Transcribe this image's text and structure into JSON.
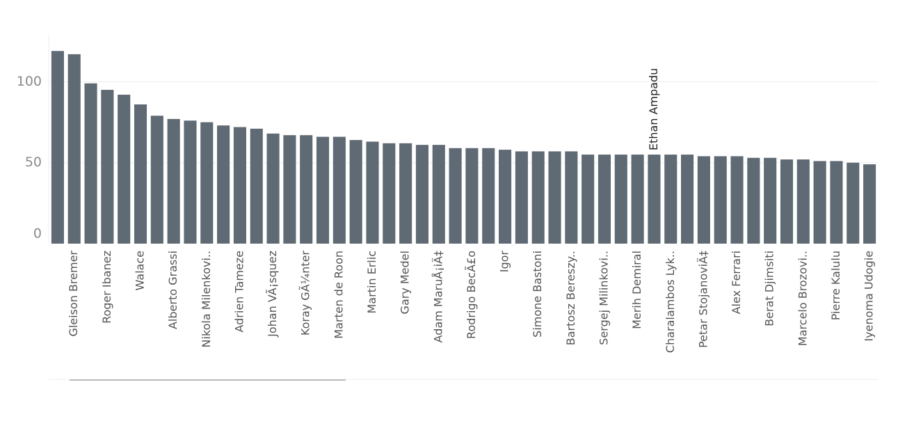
{
  "chart_data": {
    "type": "bar",
    "categories": [
      null,
      "Gleison Bremer",
      null,
      "Roger Ibanez",
      null,
      "Walace",
      null,
      "Alberto Grassi",
      null,
      "Nikola Milenkovi..",
      null,
      "Adrien Tameze",
      null,
      "Johan VÃ¡squez",
      null,
      "Koray GÃ¼nter",
      null,
      "Marten de Roon",
      null,
      "Martin Erlic",
      null,
      "Gary Medel",
      null,
      "Adam MaruÅ¡iÄ‡",
      null,
      "Rodrigo BecÃ£o",
      null,
      "Igor",
      null,
      "Simone Bastoni",
      null,
      "Bartosz Bereszy..",
      null,
      "Sergej Milinkovi..",
      null,
      "Merih Demiral",
      null,
      "Charalambos Lyk..",
      null,
      "Petar StojanoviÄ‡",
      null,
      "Alex Ferrari",
      null,
      "Berat Djimsiti",
      null,
      "Marcelo Brozovi..",
      null,
      "Pierre Kalulu",
      null,
      "Iyenoma Udogie"
    ],
    "values": [
      119,
      117,
      99,
      95,
      92,
      86,
      79,
      77,
      76,
      75,
      73,
      72,
      71,
      68,
      67,
      67,
      66,
      66,
      64,
      63,
      62,
      62,
      61,
      61,
      59,
      59,
      59,
      58,
      57,
      57,
      57,
      57,
      55,
      55,
      55,
      55,
      55,
      55,
      55,
      54,
      54,
      54,
      53,
      53,
      52,
      52,
      51,
      51,
      50,
      49
    ],
    "color": "#5f6a74",
    "annotation": {
      "text": "Ethan Ampadu",
      "bar": 36
    },
    "ylim": [
      0,
      129
    ],
    "yticks": [
      0,
      50,
      100
    ],
    "grid": true
  }
}
